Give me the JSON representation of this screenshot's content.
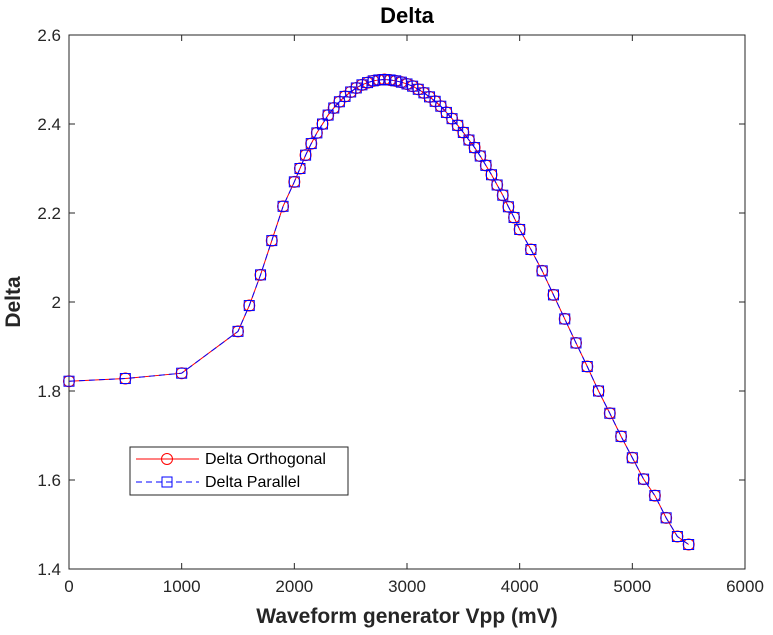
{
  "chart_data": {
    "type": "line",
    "title": "Delta",
    "xlabel": "Waveform generator Vpp (mV)",
    "ylabel": "Delta",
    "xlim": [
      0,
      6000
    ],
    "ylim": [
      1.4,
      2.6
    ],
    "xticks": [
      "0",
      "1000",
      "2000",
      "3000",
      "4000",
      "5000",
      "6000"
    ],
    "yticks": [
      "1.4",
      "1.6",
      "1.8",
      "2",
      "2.2",
      "2.4",
      "2.6"
    ],
    "grid": false,
    "legend_position": "lower-left",
    "x": [
      0,
      500,
      1000,
      1500,
      1600,
      1700,
      1800,
      1900,
      2000,
      2050,
      2100,
      2150,
      2200,
      2250,
      2300,
      2350,
      2400,
      2450,
      2500,
      2550,
      2600,
      2650,
      2700,
      2750,
      2800,
      2850,
      2900,
      2950,
      3000,
      3050,
      3100,
      3150,
      3200,
      3250,
      3300,
      3350,
      3400,
      3450,
      3500,
      3550,
      3600,
      3650,
      3700,
      3750,
      3800,
      3850,
      3900,
      3950,
      4000,
      4100,
      4200,
      4300,
      4400,
      4500,
      4600,
      4700,
      4800,
      4900,
      5000,
      5100,
      5200,
      5300,
      5400,
      5500
    ],
    "series": [
      {
        "name": "Delta Orthogonal",
        "color": "#ff0000",
        "marker": "circle",
        "linestyle": "solid",
        "values": [
          1.822,
          1.828,
          1.84,
          1.934,
          1.992,
          2.061,
          2.138,
          2.215,
          2.27,
          2.3,
          2.33,
          2.356,
          2.38,
          2.4,
          2.42,
          2.436,
          2.45,
          2.462,
          2.472,
          2.481,
          2.488,
          2.493,
          2.497,
          2.499,
          2.5,
          2.499,
          2.497,
          2.494,
          2.49,
          2.485,
          2.478,
          2.47,
          2.461,
          2.451,
          2.44,
          2.426,
          2.412,
          2.397,
          2.381,
          2.364,
          2.347,
          2.328,
          2.307,
          2.286,
          2.263,
          2.24,
          2.214,
          2.19,
          2.163,
          2.118,
          2.07,
          2.016,
          1.962,
          1.908,
          1.855,
          1.8,
          1.75,
          1.698,
          1.65,
          1.602,
          1.565,
          1.515,
          1.473,
          1.455
        ]
      },
      {
        "name": "Delta Parallel",
        "color": "#0000ff",
        "marker": "square",
        "linestyle": "dashed",
        "values": [
          1.822,
          1.828,
          1.84,
          1.934,
          1.992,
          2.061,
          2.138,
          2.215,
          2.27,
          2.3,
          2.33,
          2.356,
          2.38,
          2.4,
          2.42,
          2.436,
          2.45,
          2.462,
          2.472,
          2.481,
          2.488,
          2.493,
          2.497,
          2.499,
          2.5,
          2.499,
          2.497,
          2.494,
          2.49,
          2.485,
          2.478,
          2.47,
          2.461,
          2.451,
          2.44,
          2.426,
          2.412,
          2.397,
          2.381,
          2.364,
          2.347,
          2.328,
          2.307,
          2.286,
          2.263,
          2.24,
          2.214,
          2.19,
          2.163,
          2.118,
          2.07,
          2.016,
          1.962,
          1.908,
          1.855,
          1.8,
          1.75,
          1.698,
          1.65,
          1.602,
          1.565,
          1.515,
          1.473,
          1.455
        ]
      }
    ]
  }
}
